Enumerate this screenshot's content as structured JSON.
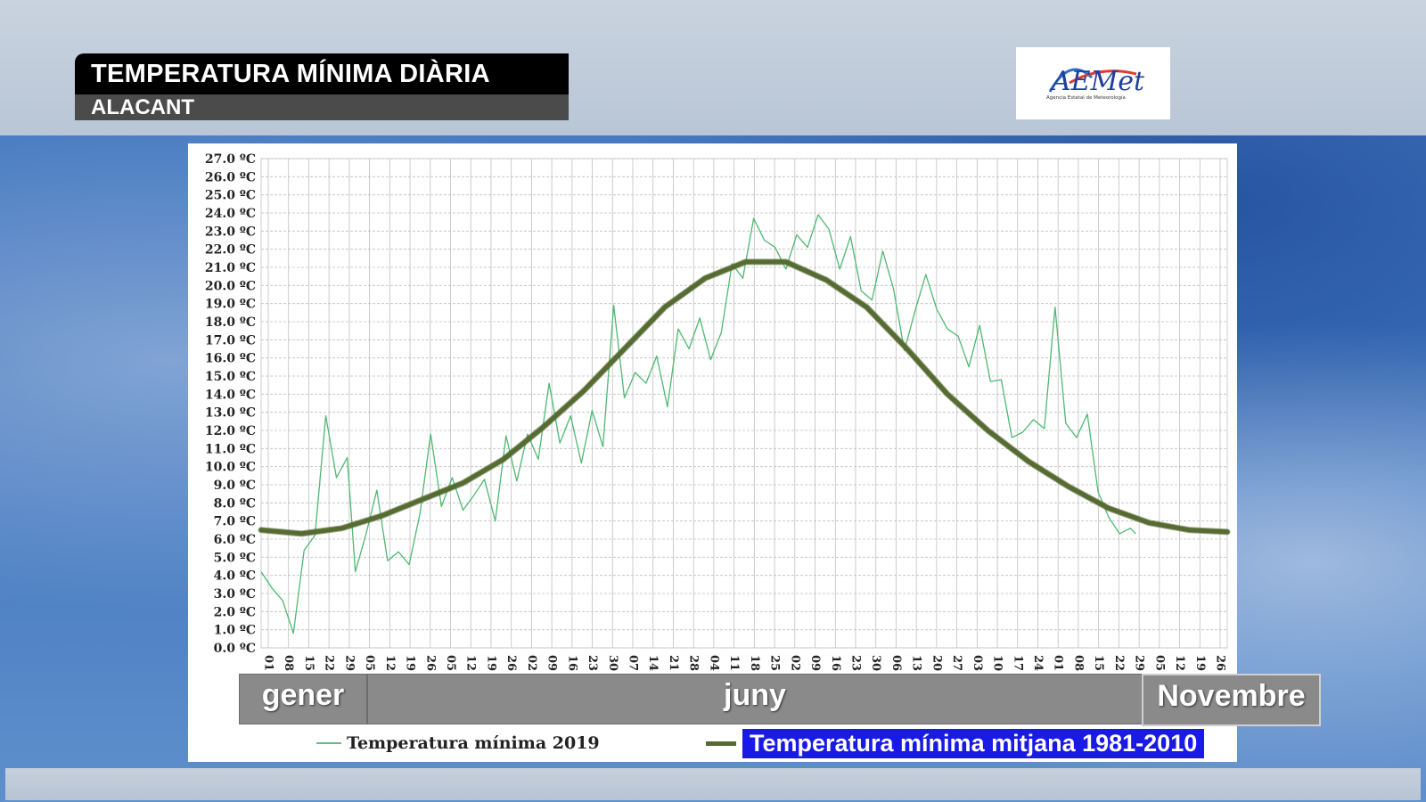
{
  "header": {
    "title": "TEMPERATURA MÍNIMA DIÀRIA",
    "subtitle": "ALACANT"
  },
  "logo": {
    "text": "AEMet",
    "subtext": "Agencia Estatal de Meteorología"
  },
  "months_bar": {
    "left": "gener",
    "middle": "juny",
    "right": "Novembre"
  },
  "legend": {
    "series_2019": "Temperatura mínima 2019",
    "series_normal": "Temperatura mínima mitjana 1981-2010"
  },
  "colors": {
    "series_2019": "#4fb873",
    "series_normal": "#556b2f",
    "grid": "#bfbfbf",
    "legend_highlight": "#1a1ae6"
  },
  "chart_data": {
    "type": "line",
    "ylim": [
      0,
      27
    ],
    "ytick_labels": [
      "0.0 ºC",
      "1.0 ºC",
      "2.0 ºC",
      "3.0 ºC",
      "4.0 ºC",
      "5.0 ºC",
      "6.0 ºC",
      "7.0 ºC",
      "8.0 ºC",
      "9.0 ºC",
      "10.0 ºC",
      "11.0 ºC",
      "12.0 ºC",
      "13.0 ºC",
      "14.0 ºC",
      "15.0 ºC",
      "16.0 ºC",
      "17.0 ºC",
      "18.0 ºC",
      "19.0 ºC",
      "20.0 ºC",
      "21.0 ºC",
      "22.0 ºC",
      "23.0 ºC",
      "24.0 ºC",
      "25.0 ºC",
      "26.0 ºC",
      "27.0 ºC"
    ],
    "xtick_labels": [
      "01",
      "08",
      "15",
      "22",
      "29",
      "05",
      "12",
      "19",
      "26",
      "05",
      "12",
      "19",
      "26",
      "02",
      "09",
      "16",
      "23",
      "30",
      "07",
      "14",
      "21",
      "28",
      "04",
      "11",
      "18",
      "25",
      "02",
      "09",
      "16",
      "23",
      "30",
      "06",
      "13",
      "20",
      "27",
      "03",
      "10",
      "17",
      "24",
      "01",
      "08",
      "15",
      "22",
      "29",
      "05",
      "12",
      "19",
      "26"
    ],
    "grid": true,
    "series": [
      {
        "name": "Temperatura mínima 2019",
        "x": [
          1,
          5,
          9,
          13,
          17,
          21,
          25,
          29,
          33,
          36,
          40,
          44,
          48,
          52,
          56,
          60,
          64,
          68,
          72,
          76,
          80,
          84,
          88,
          92,
          96,
          100,
          104,
          108,
          112,
          116,
          120,
          124,
          128,
          132,
          136,
          140,
          144,
          148,
          152,
          156,
          160,
          164,
          168,
          172,
          176,
          180,
          184,
          188,
          192,
          196,
          200,
          204,
          208,
          212,
          216,
          220,
          224,
          228,
          232,
          236,
          240,
          244,
          248,
          252,
          256,
          260,
          264,
          268,
          272,
          276,
          280,
          284,
          288,
          292,
          296,
          300,
          304,
          308,
          312,
          316,
          320,
          324,
          326
        ],
        "values": [
          4.2,
          3.3,
          2.6,
          0.8,
          5.4,
          6.2,
          12.8,
          9.4,
          10.5,
          4.2,
          6.3,
          8.7,
          4.8,
          5.3,
          4.6,
          7.4,
          11.8,
          7.8,
          9.4,
          7.6,
          8.4,
          9.3,
          7.0,
          11.7,
          9.2,
          11.8,
          10.4,
          14.6,
          11.3,
          12.8,
          10.2,
          13.1,
          11.1,
          18.9,
          13.8,
          15.2,
          14.6,
          16.1,
          13.3,
          17.6,
          16.5,
          18.2,
          15.9,
          17.4,
          21.2,
          20.4,
          23.7,
          22.5,
          22.1,
          20.9,
          22.8,
          22.1,
          23.9,
          23.1,
          20.9,
          22.7,
          19.7,
          19.2,
          21.9,
          19.8,
          16.4,
          18.6,
          20.6,
          18.7,
          17.6,
          17.2,
          15.5,
          17.8,
          14.7,
          14.8,
          11.6,
          11.9,
          12.6,
          12.1,
          18.8,
          12.4,
          11.6,
          12.9,
          8.6,
          7.2,
          6.3,
          6.6,
          6.3
        ],
        "color": "#4fb873"
      },
      {
        "name": "Temperatura mínima mitjana 1981-2010",
        "x": [
          1,
          16,
          31,
          46,
          61,
          76,
          91,
          106,
          121,
          136,
          151,
          166,
          181,
          196,
          211,
          226,
          241,
          256,
          271,
          286,
          301,
          316,
          331,
          346,
          360
        ],
        "values": [
          6.5,
          6.3,
          6.6,
          7.3,
          8.2,
          9.1,
          10.4,
          12.2,
          14.2,
          16.5,
          18.8,
          20.4,
          21.3,
          21.3,
          20.3,
          18.8,
          16.5,
          14.0,
          12.0,
          10.3,
          8.9,
          7.7,
          6.9,
          6.5,
          6.4
        ],
        "color": "#556b2f"
      }
    ]
  }
}
